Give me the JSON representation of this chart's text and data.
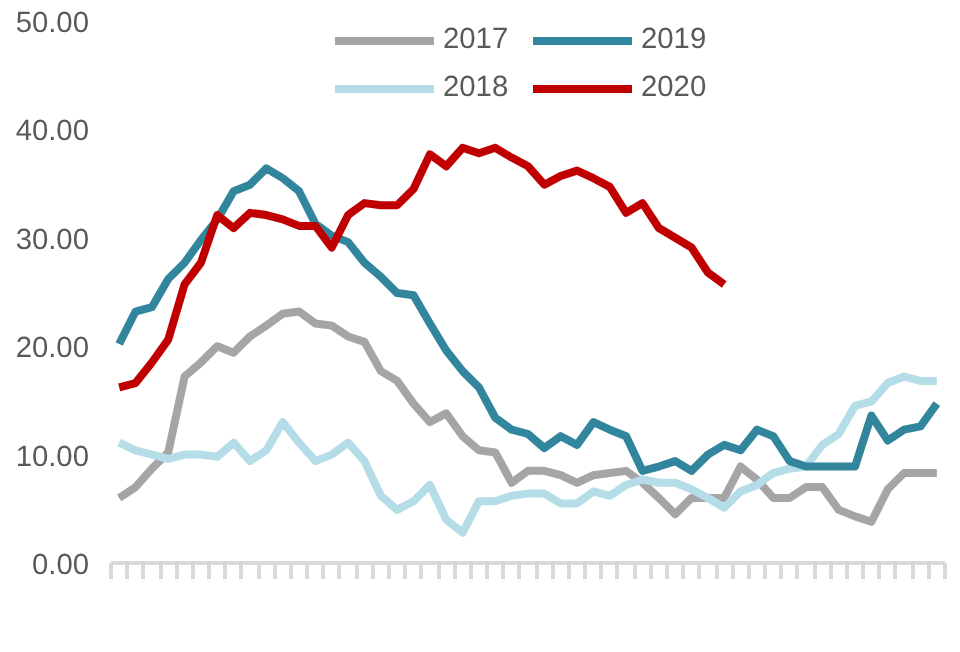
{
  "chart_data": {
    "type": "line",
    "categories": [
      null,
      null,
      null,
      null,
      null,
      null,
      null,
      null,
      null,
      null,
      null,
      null,
      null,
      null,
      null,
      null,
      null,
      null,
      null,
      null,
      null,
      null,
      null,
      null,
      null,
      null,
      null,
      null,
      null,
      null,
      null,
      null,
      null,
      null,
      null,
      null,
      null,
      null,
      null,
      null,
      null,
      null,
      null,
      null,
      null,
      null,
      null,
      null,
      null,
      null,
      null
    ],
    "series": [
      {
        "name": "2017",
        "color": "#a5a5a5",
        "values": [
          6.0,
          7.0,
          8.7,
          10.2,
          17.2,
          18.5,
          20.0,
          19.4,
          20.9,
          21.9,
          23.0,
          23.2,
          22.1,
          21.9,
          20.9,
          20.4,
          17.7,
          16.8,
          14.7,
          13.0,
          13.8,
          11.7,
          10.4,
          10.2,
          7.4,
          8.5,
          8.5,
          8.1,
          7.4,
          8.1,
          8.3,
          8.5,
          7.4,
          6.0,
          4.5,
          6.0,
          6.0,
          6.0,
          8.9,
          7.7,
          6.0,
          6.0,
          7.0,
          7.0,
          4.9,
          4.3,
          3.8,
          6.8,
          8.3,
          8.3,
          8.3
        ]
      },
      {
        "name": "2018",
        "color": "#b4dde8",
        "values": [
          11.1,
          10.4,
          10.0,
          9.6,
          10.0,
          10.0,
          9.8,
          11.1,
          9.4,
          10.4,
          13.0,
          11.1,
          9.4,
          10.0,
          11.1,
          9.4,
          6.2,
          4.9,
          5.7,
          7.2,
          4.0,
          2.8,
          5.7,
          5.7,
          6.2,
          6.4,
          6.4,
          5.5,
          5.5,
          6.6,
          6.2,
          7.2,
          7.7,
          7.4,
          7.4,
          6.8,
          6.0,
          5.1,
          6.6,
          7.2,
          8.3,
          8.7,
          8.9,
          10.9,
          11.9,
          14.5,
          14.9,
          16.6,
          17.2,
          16.8,
          16.8
        ]
      },
      {
        "name": "2019",
        "color": "#31859c",
        "values": [
          20.2,
          23.2,
          23.6,
          26.2,
          27.7,
          29.8,
          31.7,
          34.3,
          34.9,
          36.4,
          35.5,
          34.3,
          31.3,
          30.2,
          29.6,
          27.7,
          26.4,
          24.9,
          24.7,
          22.1,
          19.6,
          17.7,
          16.2,
          13.4,
          12.3,
          11.9,
          10.6,
          11.7,
          10.9,
          13.0,
          12.3,
          11.7,
          8.5,
          8.9,
          9.4,
          8.5,
          10.0,
          10.9,
          10.4,
          12.3,
          11.7,
          9.4,
          8.9,
          8.9,
          8.9,
          8.9,
          13.6,
          11.3,
          12.3,
          12.6,
          14.7
        ]
      },
      {
        "name": "2020",
        "color": "#c00000",
        "values": [
          16.2,
          16.6,
          18.5,
          20.6,
          25.7,
          27.7,
          32.1,
          30.9,
          32.3,
          32.1,
          31.7,
          31.1,
          31.1,
          29.1,
          32.1,
          33.2,
          33.0,
          33.0,
          34.5,
          37.7,
          36.6,
          38.3,
          37.8,
          38.3,
          37.4,
          36.6,
          34.9,
          35.7,
          36.2,
          35.5,
          34.7,
          32.3,
          33.2,
          30.9,
          30.0,
          29.1,
          26.8,
          25.7,
          null,
          null,
          null,
          null,
          null,
          null,
          null,
          null,
          null,
          null,
          null,
          null,
          null
        ]
      }
    ],
    "ylim": [
      0,
      50
    ],
    "yticks": [
      {
        "value": 0,
        "label": "0.00"
      },
      {
        "value": 10,
        "label": "10.00"
      },
      {
        "value": 20,
        "label": "20.00"
      },
      {
        "value": 30,
        "label": "30.00"
      },
      {
        "value": 40,
        "label": "40.00"
      },
      {
        "value": 50,
        "label": "50.00"
      }
    ],
    "grid": false,
    "legend": "top",
    "marker": "none",
    "line_style": "solid"
  }
}
